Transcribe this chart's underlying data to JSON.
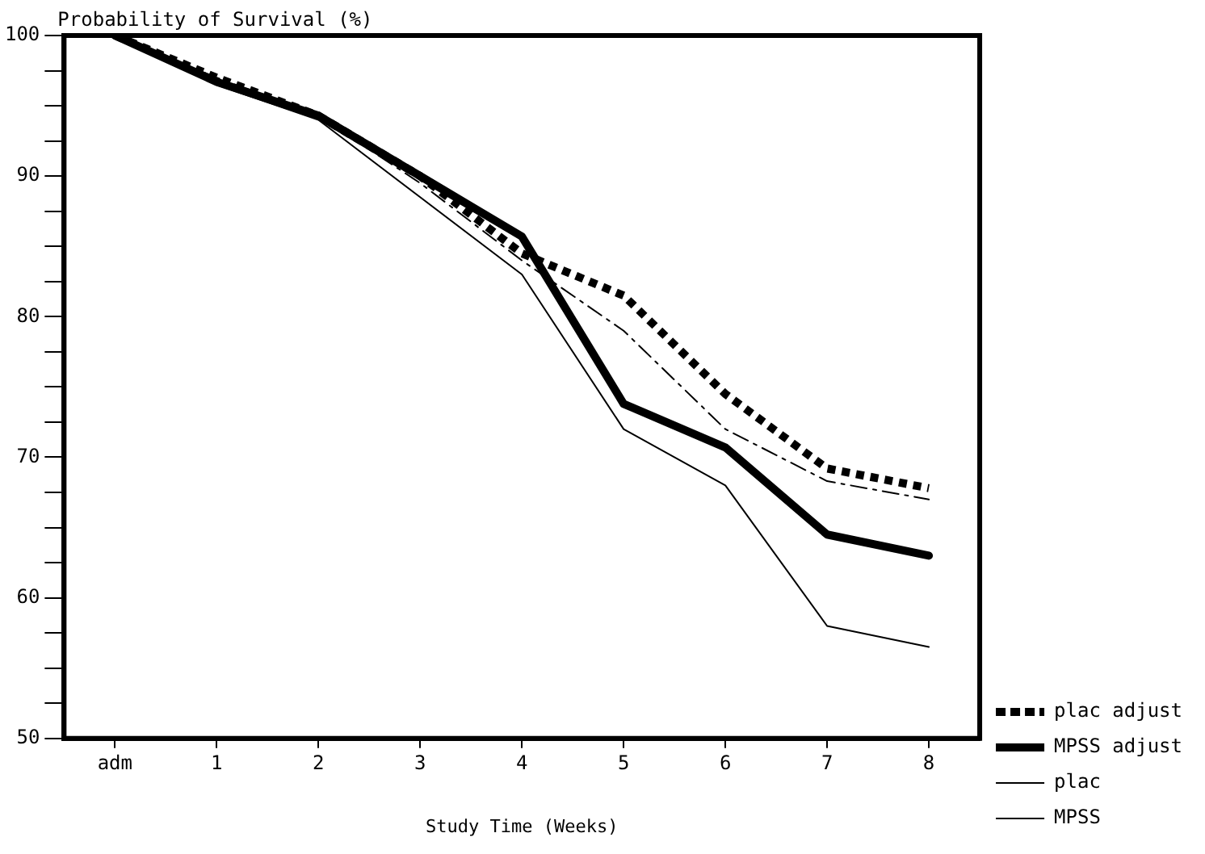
{
  "chart_data": {
    "type": "line",
    "ylabel": "Probability of Survival (%)",
    "xlabel": "Study Time (Weeks)",
    "categories": [
      "adm",
      "1",
      "2",
      "3",
      "4",
      "5",
      "6",
      "7",
      "8"
    ],
    "series": [
      {
        "name": "plac adjust",
        "color": "#000000",
        "line_style": "dotted",
        "values": [
          100,
          97,
          94.3,
          90,
          84.5,
          81.5,
          74.5,
          69.2,
          67.8
        ]
      },
      {
        "name": "MPSS adjust",
        "color": "#000000",
        "line_style": "solid",
        "values": [
          100,
          96.7,
          94.3,
          90,
          85.7,
          73.8,
          70.7,
          64.5,
          63
        ]
      },
      {
        "name": "plac",
        "color": "#000000",
        "line_style": "dashed",
        "values": [
          100,
          97,
          94.3,
          89.5,
          84,
          79,
          72,
          68.3,
          67
        ]
      },
      {
        "name": "MPSS",
        "color": "#000000",
        "line_style": "solid",
        "values": [
          100,
          96.5,
          94,
          88.5,
          83,
          72,
          68,
          58,
          56.5
        ]
      }
    ],
    "ylim": [
      50,
      100
    ],
    "yticks": [
      50,
      {
        "value": 52.5,
        "label": null
      },
      {
        "value": 55,
        "label": null
      },
      {
        "value": 57.5,
        "label": null
      },
      60,
      {
        "value": 62.5,
        "label": null
      },
      {
        "value": 65,
        "label": null
      },
      {
        "value": 67.5,
        "label": null
      },
      70,
      {
        "value": 72.5,
        "label": null
      },
      {
        "value": 75,
        "label": null
      },
      {
        "value": 77.5,
        "label": null
      },
      80,
      {
        "value": 82.5,
        "label": null
      },
      {
        "value": 85,
        "label": null
      },
      {
        "value": 87.5,
        "label": null
      },
      90,
      {
        "value": 92.5,
        "label": null
      },
      {
        "value": 95,
        "label": null
      },
      {
        "value": 97.5,
        "label": null
      },
      100
    ],
    "grid": false,
    "legend": "right",
    "marker": "none"
  }
}
